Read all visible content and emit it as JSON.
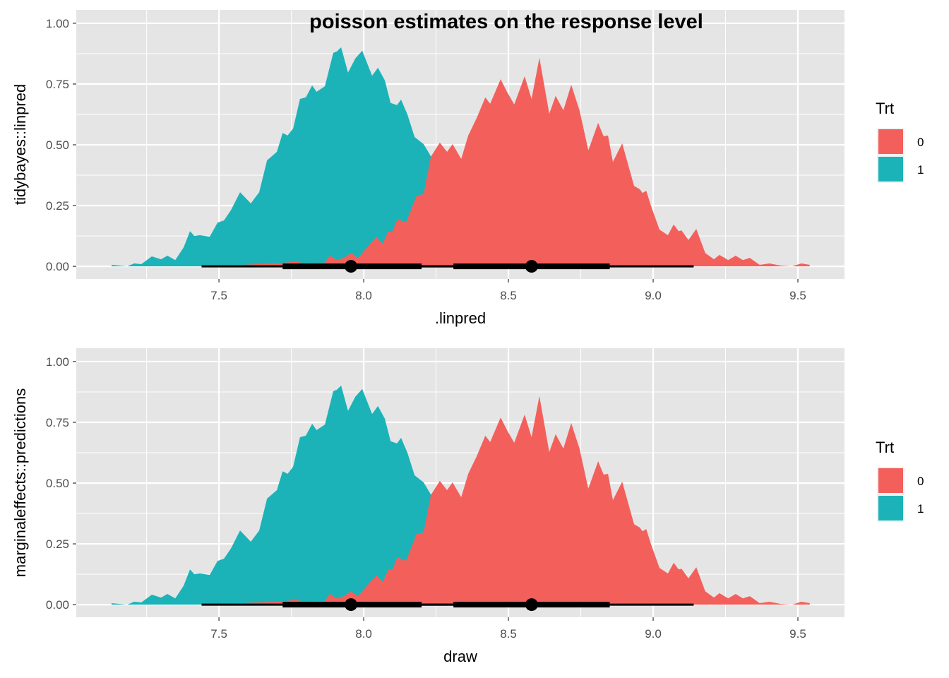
{
  "title": "poisson estimates on the response level",
  "colors": {
    "0": "#F3605C",
    "1": "#1BB3B8",
    "panel_bg": "#E5E5E5",
    "grid": "#FFFFFF"
  },
  "chart_data": [
    {
      "type": "area",
      "subtype": "density with point-interval",
      "xlabel": ".linpred",
      "ylabel": "tidybayes::linpred",
      "xlim": [
        7.007,
        9.661
      ],
      "ylim": [
        -0.052,
        1.055
      ],
      "xticks": [
        "7.5",
        "8.0",
        "8.5",
        "9.0",
        "9.5"
      ],
      "yticks": [
        "0.00",
        "0.25",
        "0.50",
        "0.75",
        "1.00"
      ],
      "grid": true,
      "legend": {
        "title": "Trt",
        "entries": [
          "0",
          "1"
        ],
        "placement": "right"
      }
    },
    {
      "type": "area",
      "subtype": "density with point-interval",
      "xlabel": "draw",
      "ylabel": "marginaleffects::predictions",
      "xlim": [
        7.007,
        9.661
      ],
      "ylim": [
        -0.052,
        1.055
      ],
      "xticks": [
        "7.5",
        "8.0",
        "8.5",
        "9.0",
        "9.5"
      ],
      "yticks": [
        "0.00",
        "0.25",
        "0.50",
        "0.75",
        "1.00"
      ],
      "grid": true,
      "legend": {
        "title": "Trt",
        "entries": [
          "0",
          "1"
        ],
        "placement": "right"
      }
    }
  ],
  "series": [
    {
      "name": "1",
      "density": [
        [
          7.129,
          0.006
        ],
        [
          7.183,
          0
        ],
        [
          7.207,
          0.012
        ],
        [
          7.232,
          0.009
        ],
        [
          7.268,
          0.041
        ],
        [
          7.3,
          0.029
        ],
        [
          7.322,
          0.044
        ],
        [
          7.349,
          0.026
        ],
        [
          7.378,
          0.078
        ],
        [
          7.4,
          0.145
        ],
        [
          7.415,
          0.125
        ],
        [
          7.434,
          0.128
        ],
        [
          7.468,
          0.122
        ],
        [
          7.495,
          0.18
        ],
        [
          7.517,
          0.189
        ],
        [
          7.541,
          0.23
        ],
        [
          7.573,
          0.305
        ],
        [
          7.61,
          0.259
        ],
        [
          7.639,
          0.305
        ],
        [
          7.666,
          0.436
        ],
        [
          7.7,
          0.471
        ],
        [
          7.72,
          0.549
        ],
        [
          7.737,
          0.538
        ],
        [
          7.756,
          0.567
        ],
        [
          7.78,
          0.689
        ],
        [
          7.8,
          0.695
        ],
        [
          7.822,
          0.744
        ],
        [
          7.837,
          0.718
        ],
        [
          7.866,
          0.741
        ],
        [
          7.895,
          0.878
        ],
        [
          7.907,
          0.884
        ],
        [
          7.922,
          0.901
        ],
        [
          7.946,
          0.797
        ],
        [
          7.971,
          0.855
        ],
        [
          7.995,
          0.887
        ],
        [
          8.029,
          0.784
        ],
        [
          8.049,
          0.817
        ],
        [
          8.073,
          0.765
        ],
        [
          8.093,
          0.672
        ],
        [
          8.115,
          0.663
        ],
        [
          8.129,
          0.686
        ],
        [
          8.151,
          0.625
        ],
        [
          8.176,
          0.532
        ],
        [
          8.207,
          0.503
        ],
        [
          8.232,
          0.453
        ],
        [
          8.305,
          0.34
        ],
        [
          8.402,
          0.166
        ],
        [
          8.5,
          0.05
        ],
        [
          8.598,
          0.006
        ],
        [
          8.695,
          0
        ]
      ],
      "point": 7.956,
      "interval_66": [
        7.72,
        8.2
      ],
      "interval_95": [
        7.44,
        8.47
      ]
    },
    {
      "name": "0",
      "density": [
        [
          7.45,
          0
        ],
        [
          7.702,
          0.012
        ],
        [
          7.768,
          0.02
        ],
        [
          7.793,
          0.012
        ],
        [
          7.866,
          0.015
        ],
        [
          7.883,
          0.044
        ],
        [
          7.907,
          0.026
        ],
        [
          7.932,
          0.035
        ],
        [
          7.956,
          0.055
        ],
        [
          7.98,
          0.035
        ],
        [
          8.012,
          0.078
        ],
        [
          8.044,
          0.122
        ],
        [
          8.066,
          0.093
        ],
        [
          8.085,
          0.145
        ],
        [
          8.098,
          0.142
        ],
        [
          8.117,
          0.195
        ],
        [
          8.146,
          0.18
        ],
        [
          8.183,
          0.291
        ],
        [
          8.207,
          0.297
        ],
        [
          8.232,
          0.451
        ],
        [
          8.263,
          0.509
        ],
        [
          8.288,
          0.471
        ],
        [
          8.307,
          0.503
        ],
        [
          8.337,
          0.442
        ],
        [
          8.361,
          0.538
        ],
        [
          8.39,
          0.61
        ],
        [
          8.42,
          0.695
        ],
        [
          8.437,
          0.669
        ],
        [
          8.473,
          0.77
        ],
        [
          8.495,
          0.718
        ],
        [
          8.52,
          0.666
        ],
        [
          8.556,
          0.782
        ],
        [
          8.58,
          0.689
        ],
        [
          8.607,
          0.858
        ],
        [
          8.641,
          0.628
        ],
        [
          8.663,
          0.701
        ],
        [
          8.69,
          0.642
        ],
        [
          8.717,
          0.747
        ],
        [
          8.746,
          0.64
        ],
        [
          8.776,
          0.477
        ],
        [
          8.81,
          0.59
        ],
        [
          8.829,
          0.535
        ],
        [
          8.844,
          0.538
        ],
        [
          8.861,
          0.43
        ],
        [
          8.893,
          0.506
        ],
        [
          8.934,
          0.331
        ],
        [
          8.954,
          0.317
        ],
        [
          8.963,
          0.302
        ],
        [
          8.976,
          0.311
        ],
        [
          8.993,
          0.247
        ],
        [
          9.022,
          0.151
        ],
        [
          9.051,
          0.128
        ],
        [
          9.071,
          0.172
        ],
        [
          9.088,
          0.145
        ],
        [
          9.098,
          0.148
        ],
        [
          9.122,
          0.108
        ],
        [
          9.149,
          0.154
        ],
        [
          9.18,
          0.055
        ],
        [
          9.21,
          0.029
        ],
        [
          9.229,
          0.047
        ],
        [
          9.259,
          0.026
        ],
        [
          9.285,
          0.044
        ],
        [
          9.31,
          0.026
        ],
        [
          9.334,
          0.035
        ],
        [
          9.368,
          0.006
        ],
        [
          9.402,
          0.012
        ],
        [
          9.441,
          0.003
        ],
        [
          9.48,
          0
        ],
        [
          9.512,
          0.012
        ],
        [
          9.541,
          0.006
        ]
      ],
      "point": 8.58,
      "interval_66": [
        8.31,
        8.85
      ],
      "interval_95": [
        8.05,
        9.14
      ]
    }
  ]
}
